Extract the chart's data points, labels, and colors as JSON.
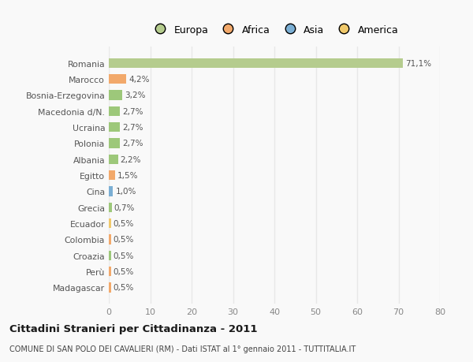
{
  "categories": [
    "Madagascar",
    "Perù",
    "Croazia",
    "Colombia",
    "Ecuador",
    "Grecia",
    "Cina",
    "Egitto",
    "Albania",
    "Polonia",
    "Ucraina",
    "Macedonia d/N.",
    "Bosnia-Erzegovina",
    "Marocco",
    "Romania"
  ],
  "values": [
    0.5,
    0.5,
    0.5,
    0.5,
    0.5,
    0.7,
    1.0,
    1.5,
    2.2,
    2.7,
    2.7,
    2.7,
    3.2,
    4.2,
    71.1
  ],
  "colors": [
    "#f2a96b",
    "#f2a96b",
    "#9dc87a",
    "#f2a96b",
    "#f0c96b",
    "#9dc87a",
    "#7bafd4",
    "#f2a96b",
    "#9dc87a",
    "#9dc87a",
    "#9dc87a",
    "#9dc87a",
    "#9dc87a",
    "#f2a96b",
    "#b5cc8e"
  ],
  "labels": [
    "0,5%",
    "0,5%",
    "0,5%",
    "0,5%",
    "0,5%",
    "0,7%",
    "1,0%",
    "1,5%",
    "2,2%",
    "2,7%",
    "2,7%",
    "2,7%",
    "3,2%",
    "4,2%",
    "71,1%"
  ],
  "legend_labels": [
    "Europa",
    "Africa",
    "Asia",
    "America"
  ],
  "legend_colors": [
    "#b5cc8e",
    "#f2a96b",
    "#7bafd4",
    "#f0c96b"
  ],
  "title": "Cittadini Stranieri per Cittadinanza - 2011",
  "subtitle": "COMUNE DI SAN POLO DEI CAVALIERI (RM) - Dati ISTAT al 1° gennaio 2011 - TUTTITALIA.IT",
  "xlim": [
    0,
    80
  ],
  "xticks": [
    0,
    10,
    20,
    30,
    40,
    50,
    60,
    70,
    80
  ],
  "bg_color": "#f9f9f9",
  "grid_color": "#e8e8e8",
  "bar_height": 0.6
}
